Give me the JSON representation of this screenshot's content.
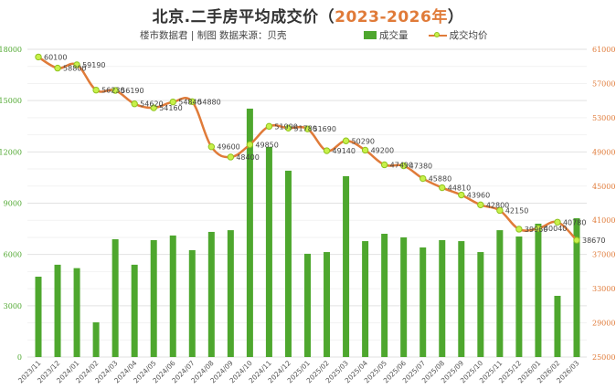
{
  "header": {
    "title_prefix": "北京.二手房平均成交价（",
    "title_years": "2023-2026年",
    "title_suffix": "）",
    "subtitle": "楼市数据君 | 制图   数据来源：贝壳"
  },
  "legend": {
    "volume_label": "成交量",
    "price_label": "成交均价"
  },
  "colors": {
    "bar": "#4ea72e",
    "line": "#e07b39",
    "marker_fill": "#c8f04a",
    "marker_stroke": "#8fc31f",
    "grid": "#e6e6e6"
  },
  "chart_data": {
    "type": "bar+line",
    "title": "北京.二手房平均成交价（2023-2026年）",
    "subtitle": "楼市数据君 | 制图 数据来源：贝壳",
    "xlabel": "",
    "ylabel_left": "成交量",
    "ylabel_right": "成交均价",
    "ylim_left": [
      0,
      18000
    ],
    "ylim_right": [
      25000,
      61000
    ],
    "yticks_left": [
      0,
      3000,
      6000,
      9000,
      12000,
      15000,
      18000
    ],
    "yticks_right": [
      25000,
      29000,
      33000,
      37000,
      41000,
      45000,
      49000,
      53000,
      57000,
      61000
    ],
    "grid": true,
    "legend_position": "top-right",
    "categories": [
      "2023/11",
      "2023/12",
      "2024/01",
      "2024/02",
      "2024/03",
      "2024/04",
      "2024/05",
      "2024/06",
      "2024/07",
      "2024/08",
      "2024/09",
      "2024/10",
      "2024/11",
      "2024/12",
      "2025/01",
      "2025/02",
      "2025/03",
      "2025/04",
      "2025/05",
      "2025/06",
      "2025/07",
      "2025/08",
      "2025/09",
      "2025/10",
      "2025/11",
      "2025/12",
      "2026/01",
      "2026/02",
      "2026/03"
    ],
    "series": [
      {
        "name": "成交量",
        "type": "bar",
        "axis": "left",
        "values": [
          4700,
          5400,
          5200,
          2030,
          6890,
          5400,
          6840,
          7110,
          6250,
          7320,
          7420,
          14530,
          12290,
          10900,
          6040,
          6140,
          10580,
          6780,
          7210,
          7000,
          6410,
          6840,
          6780,
          6140,
          7420,
          7050,
          7800,
          3580,
          8120
        ]
      },
      {
        "name": "成交均价",
        "type": "line",
        "axis": "right",
        "values": [
          60100,
          58800,
          59190,
          56230,
          56190,
          54620,
          54160,
          54840,
          54880,
          49600,
          48400,
          49850,
          51990,
          51780,
          51690,
          49140,
          50290,
          49200,
          47490,
          47380,
          45880,
          44810,
          43960,
          42800,
          42150,
          39960,
          40040,
          40780,
          38670
        ],
        "labels": [
          "60100",
          "58800",
          "59190",
          "56230",
          "56190",
          "54620",
          "54160",
          "54840",
          "54880",
          "49600",
          "48400",
          "49850",
          "51990",
          "51780",
          "51690",
          "49140",
          "50290",
          "49200",
          "47490",
          "47380",
          "45880",
          "44810",
          "43960",
          "42800",
          "42150",
          "39960",
          "40040",
          "40780",
          "38670"
        ]
      }
    ]
  }
}
